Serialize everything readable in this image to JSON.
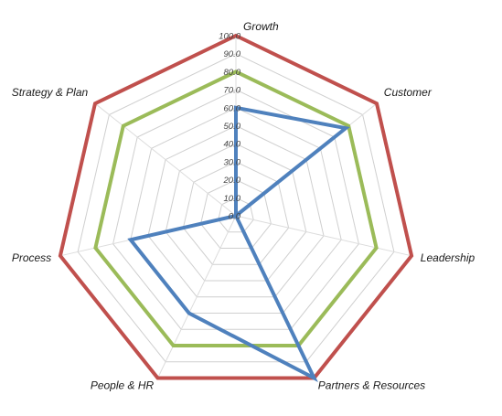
{
  "chart_data": {
    "type": "radar",
    "categories": [
      "Growth",
      "Customer",
      "Leadership",
      "Partners & Resources",
      "People & HR",
      "Process",
      "Strategy & Plan"
    ],
    "axis": {
      "min": 0,
      "max": 100,
      "step": 10,
      "tick_labels": [
        "0.0",
        "10.0",
        "20.0",
        "30.0",
        "40.0",
        "50.0",
        "60.0",
        "70.0",
        "80.0",
        "90.0",
        "100.0"
      ]
    },
    "grid": true,
    "legend": "none",
    "series": [
      {
        "values": [
          100,
          100,
          100,
          100,
          100,
          100,
          100
        ],
        "color": "#c0504d"
      },
      {
        "values": [
          80,
          80,
          80,
          80,
          80,
          80,
          80
        ],
        "color": "#9bbb59"
      },
      {
        "values": [
          60,
          78,
          0,
          100,
          60,
          60,
          0
        ],
        "color": "#4f81bd"
      }
    ]
  }
}
